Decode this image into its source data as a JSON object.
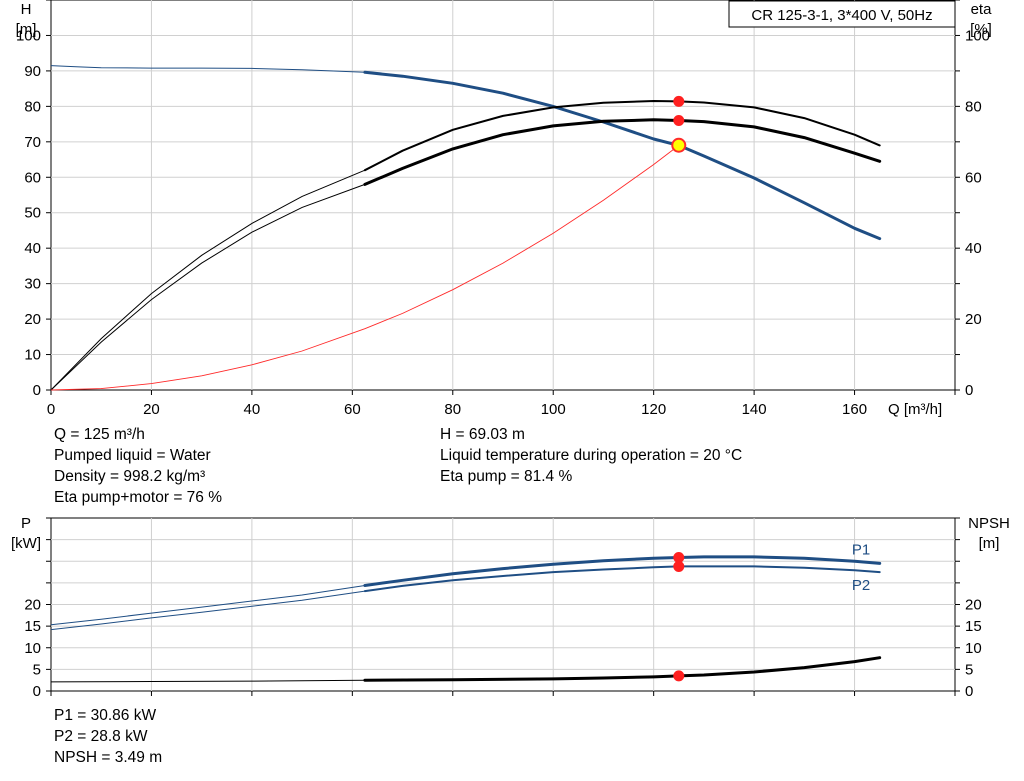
{
  "chart_data": [
    {
      "type": "line",
      "title": "CR 125-3-1, 3*400 V, 50Hz",
      "xlabel": "Q [m³/h]",
      "ylabel": [
        "H",
        "[m]"
      ],
      "y2label": [
        "eta",
        "[%]"
      ],
      "xlim": [
        0,
        180
      ],
      "ylim": [
        0,
        110
      ],
      "y2lim": [
        0,
        110
      ],
      "grid": true,
      "x_ticks": [
        "0",
        "20",
        "40",
        "60",
        "80",
        "100",
        "120",
        "140",
        "160"
      ],
      "y_ticks": [
        "0",
        "10",
        "20",
        "30",
        "40",
        "50",
        "60",
        "70",
        "80",
        "90",
        "100"
      ],
      "y2_ticks": [
        "0",
        "20",
        "40",
        "60",
        "80",
        "100"
      ],
      "series": [
        {
          "curve": "head",
          "axis": "left",
          "color": "#1f4e84",
          "x": [
            0,
            5,
            10,
            20,
            30,
            40,
            50,
            62.5,
            70,
            80,
            90,
            100,
            110,
            120,
            125,
            130,
            140,
            150,
            160,
            165
          ],
          "values": [
            91.5,
            91.2,
            90.9,
            90.8,
            90.8,
            90.7,
            90.3,
            89.6,
            88.5,
            86.5,
            83.7,
            80.0,
            75.6,
            70.8,
            69.0,
            66.0,
            59.8,
            52.8,
            45.6,
            42.7
          ]
        },
        {
          "curve": "eta pump",
          "axis": "right",
          "color": "#000000",
          "x": [
            0,
            10,
            20,
            30,
            40,
            50,
            62.5,
            70,
            80,
            90,
            100,
            110,
            120,
            125,
            130,
            140,
            150,
            160,
            165
          ],
          "values": [
            0,
            14.5,
            27.2,
            38.0,
            47.0,
            54.6,
            62.0,
            67.5,
            73.4,
            77.3,
            79.7,
            81.0,
            81.5,
            81.4,
            81.1,
            79.7,
            76.7,
            72.0,
            69.0
          ]
        },
        {
          "curve": "eta pump+motor",
          "axis": "right",
          "color": "#000000",
          "x": [
            0,
            10,
            20,
            30,
            40,
            50,
            62.5,
            70,
            80,
            90,
            100,
            110,
            120,
            125,
            130,
            140,
            150,
            160,
            165
          ],
          "values": [
            0,
            13.5,
            25.5,
            35.8,
            44.5,
            51.5,
            58.0,
            62.5,
            68.0,
            72.0,
            74.5,
            75.8,
            76.2,
            76.0,
            75.7,
            74.2,
            71.2,
            66.8,
            64.5
          ]
        },
        {
          "curve": "system curve",
          "axis": "left",
          "color": "#ff2a2a",
          "x": [
            0,
            10,
            20,
            30,
            40,
            50,
            62.5,
            70,
            80,
            90,
            100,
            110,
            120,
            125
          ],
          "values": [
            0,
            0.4,
            1.8,
            4.0,
            7.1,
            11.0,
            17.3,
            21.6,
            28.3,
            35.8,
            44.2,
            53.5,
            63.6,
            69.0
          ]
        }
      ],
      "operating_point": {
        "x": 125,
        "y": 69.03
      }
    },
    {
      "type": "line",
      "xlabel": "Q [m³/h]",
      "ylabel": [
        "P",
        "[kW]"
      ],
      "y2label": [
        "NPSH",
        "[m]"
      ],
      "xlim": [
        0,
        180
      ],
      "ylim": [
        0,
        40
      ],
      "y2lim": [
        0,
        40
      ],
      "grid": true,
      "y_ticks": [
        "0",
        "5",
        "10",
        "15",
        "20"
      ],
      "y2_ticks": [
        "0",
        "5",
        "10",
        "15",
        "20"
      ],
      "series": [
        {
          "name": "P1",
          "axis": "left",
          "color": "#1f4e84",
          "x": [
            0,
            10,
            20,
            30,
            40,
            50,
            62.5,
            70,
            80,
            90,
            100,
            110,
            120,
            125,
            130,
            140,
            150,
            160,
            165
          ],
          "values": [
            15.3,
            16.6,
            18.0,
            19.4,
            20.8,
            22.2,
            24.4,
            25.6,
            27.1,
            28.3,
            29.3,
            30.1,
            30.7,
            30.86,
            31.0,
            31.0,
            30.7,
            30.0,
            29.5
          ]
        },
        {
          "name": "P2",
          "axis": "left",
          "color": "#1f4e84",
          "x": [
            0,
            10,
            20,
            30,
            40,
            50,
            62.5,
            70,
            80,
            90,
            100,
            110,
            120,
            125,
            130,
            140,
            150,
            160,
            165
          ],
          "values": [
            14.2,
            15.5,
            16.9,
            18.2,
            19.6,
            21.0,
            23.1,
            24.3,
            25.6,
            26.6,
            27.5,
            28.1,
            28.6,
            28.8,
            28.8,
            28.8,
            28.5,
            27.9,
            27.5
          ]
        },
        {
          "curve": "NPSH",
          "axis": "right",
          "color": "#000000",
          "x": [
            0,
            20,
            40,
            62.5,
            80,
            100,
            110,
            120,
            125,
            130,
            140,
            150,
            160,
            165
          ],
          "values": [
            2.1,
            2.2,
            2.3,
            2.5,
            2.6,
            2.8,
            3.0,
            3.25,
            3.49,
            3.7,
            4.4,
            5.4,
            6.8,
            7.7
          ]
        }
      ],
      "operating_points": [
        {
          "series": "P1",
          "x": 125,
          "y": 30.86
        },
        {
          "series": "P2",
          "x": 125,
          "y": 28.8
        },
        {
          "series": "NPSH",
          "x": 125,
          "y": 3.49
        }
      ]
    }
  ],
  "info_top_left": [
    "Q = 125 m³/h",
    "Pumped liquid = Water",
    "Density = 998.2 kg/m³",
    "Eta pump+motor = 76 %"
  ],
  "info_top_right": [
    "H = 69.03 m",
    "Liquid temperature during operation = 20 °C",
    "Eta pump = 81.4 %"
  ],
  "info_bottom": [
    "P1 = 30.86 kW",
    "P2 = 28.8 kW",
    "NPSH = 3.49 m"
  ]
}
